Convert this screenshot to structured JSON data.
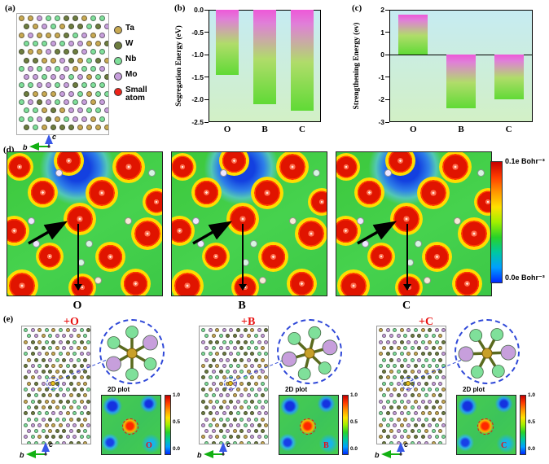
{
  "panels": {
    "a": "(a)",
    "b": "(b)",
    "c": "(c)",
    "d": "(d)",
    "e": "(e)"
  },
  "legend": {
    "items": [
      {
        "label": "Ta",
        "color": "#c8a951"
      },
      {
        "label": "W",
        "color": "#6d7d3e"
      },
      {
        "label": "Nb",
        "color": "#7fe09a"
      },
      {
        "label": "Mo",
        "color": "#c79fdc"
      },
      {
        "label": "Small atom",
        "color": "#ee2218"
      }
    ]
  },
  "structure_axes": {
    "x_label": "b",
    "y_label": "c"
  },
  "chart_data": [
    {
      "type": "bar",
      "panel": "b",
      "title": "",
      "ylabel": "Segregation Energy (eV)",
      "categories": [
        "O",
        "B",
        "C"
      ],
      "values": [
        -1.45,
        -2.1,
        -2.25
      ],
      "ylim": [
        -2.5,
        0
      ],
      "yticks": [
        "0.0",
        "-0.5",
        "-1.0",
        "-1.5",
        "-2.0",
        "-2.5"
      ],
      "grid": false,
      "legend_position": "none"
    },
    {
      "type": "bar",
      "panel": "c",
      "title": "",
      "ylabel": "Strengthening Energy (ev)",
      "categories": [
        "O",
        "B",
        "C"
      ],
      "values": [
        1.8,
        -2.4,
        -2.0
      ],
      "ylim": [
        -3,
        2
      ],
      "yticks": [
        "2",
        "1",
        "0",
        "-1",
        "-2",
        "-3"
      ],
      "grid": false,
      "legend_position": "none"
    }
  ],
  "colors": {
    "bar_top": "#ee58d8",
    "bar_bottom": "#60da36",
    "plot_bg_top": "#c6ebf2",
    "plot_bg_bottom": "#d2f0c6",
    "accent_red": "#e81010",
    "dashed_blue": "#2f48d8"
  },
  "density": {
    "colorbar_max": "0.1e Bohr⁻³",
    "colorbar_min": "0.0e Bohr⁻³",
    "maps": [
      {
        "label": "O"
      },
      {
        "label": "B"
      },
      {
        "label": "C"
      }
    ]
  },
  "bottom": {
    "plot_caption": "2D plot",
    "colorbar_ticks": [
      "1.0",
      "0.5",
      "0.0"
    ],
    "panels": [
      {
        "title": "+O",
        "letter": "O"
      },
      {
        "title": "+B",
        "letter": "B"
      },
      {
        "title": "+C",
        "letter": "C"
      }
    ]
  }
}
